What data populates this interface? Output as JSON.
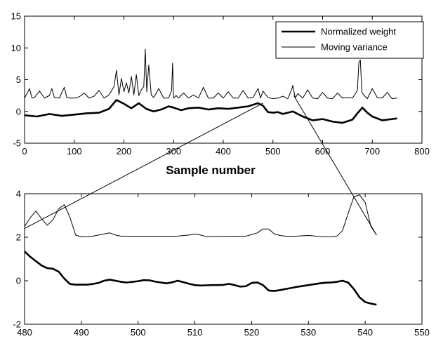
{
  "chart_data": [
    {
      "type": "line",
      "xlabel": "Sample number",
      "ylabel": "",
      "xlim": [
        0,
        800
      ],
      "ylim": [
        -5,
        15
      ],
      "xticks": [
        0,
        100,
        200,
        300,
        400,
        500,
        600,
        700,
        800
      ],
      "yticks": [
        -5,
        0,
        5,
        10,
        15
      ],
      "grid": false,
      "legend_position": "top-right",
      "series": [
        {
          "name": "Normalized weight",
          "line_width": "thick",
          "x": [
            0,
            25,
            50,
            75,
            100,
            125,
            150,
            170,
            185,
            200,
            215,
            230,
            245,
            260,
            275,
            290,
            300,
            315,
            330,
            350,
            370,
            390,
            410,
            430,
            450,
            470,
            480,
            490,
            500,
            510,
            520,
            540,
            560,
            580,
            600,
            620,
            640,
            660,
            670,
            680,
            690,
            700,
            720,
            740,
            750
          ],
          "y": [
            -0.6,
            -0.8,
            -0.4,
            -0.7,
            -0.5,
            -0.3,
            -0.2,
            0.4,
            1.8,
            1.2,
            0.5,
            1.3,
            0.4,
            0.0,
            0.3,
            0.8,
            0.6,
            0.2,
            0.5,
            0.6,
            0.3,
            0.5,
            0.4,
            0.6,
            0.8,
            1.3,
            0.9,
            -0.1,
            -0.2,
            -0.1,
            -0.4,
            0.0,
            -0.8,
            -1.4,
            -1.2,
            -1.6,
            -1.8,
            -1.3,
            -0.3,
            0.6,
            -0.2,
            -0.8,
            -1.4,
            -1.2,
            -1.1
          ]
        },
        {
          "name": "Moving variance",
          "line_width": "thin",
          "x": [
            0,
            10,
            15,
            20,
            30,
            40,
            50,
            55,
            60,
            70,
            80,
            85,
            90,
            100,
            110,
            120,
            130,
            140,
            150,
            160,
            170,
            180,
            185,
            190,
            195,
            200,
            205,
            210,
            215,
            220,
            225,
            230,
            235,
            240,
            243,
            246,
            250,
            255,
            260,
            270,
            280,
            290,
            296,
            298,
            300,
            305,
            310,
            320,
            330,
            340,
            350,
            360,
            370,
            380,
            390,
            400,
            410,
            420,
            430,
            440,
            450,
            460,
            470,
            475,
            480,
            490,
            500,
            510,
            520,
            530,
            538,
            540,
            545,
            550,
            560,
            570,
            580,
            590,
            600,
            610,
            620,
            630,
            640,
            650,
            660,
            670,
            673,
            676,
            679,
            685,
            690,
            700,
            710,
            720,
            730,
            740,
            750
          ],
          "y": [
            2.1,
            3.6,
            2.1,
            2.2,
            3.2,
            2.1,
            2.5,
            3.6,
            2.2,
            2.1,
            3.8,
            2.2,
            2.1,
            2.1,
            2.3,
            2.9,
            2.1,
            2.4,
            3.3,
            2.1,
            2.6,
            3.9,
            6.5,
            2.6,
            5.2,
            3.1,
            4.5,
            2.9,
            5.5,
            2.6,
            5.8,
            2.5,
            3.4,
            3.9,
            9.8,
            3.1,
            7.3,
            2.6,
            2.2,
            3.6,
            2.1,
            2.1,
            3.3,
            7.6,
            2.1,
            2.5,
            2.1,
            2.9,
            2.1,
            2.6,
            2.1,
            3.8,
            2.1,
            2.1,
            2.9,
            2.1,
            3.1,
            2.1,
            2.1,
            3.3,
            2.1,
            2.2,
            3.6,
            2.1,
            3.2,
            2.2,
            2.0,
            2.1,
            2.4,
            2.0,
            3.5,
            4.1,
            2.1,
            2.8,
            2.1,
            3.4,
            2.1,
            2.0,
            3.0,
            2.1,
            2.0,
            2.9,
            2.1,
            2.2,
            2.1,
            3.3,
            7.7,
            8.1,
            3.0,
            2.4,
            2.0,
            3.6,
            2.2,
            2.1,
            3.0,
            2.0,
            2.1
          ]
        }
      ]
    },
    {
      "type": "line",
      "xlabel": "",
      "ylabel": "",
      "xlim": [
        480,
        550
      ],
      "ylim": [
        -2,
        4
      ],
      "xticks": [
        480,
        490,
        500,
        510,
        520,
        530,
        540,
        550
      ],
      "yticks": [
        -2,
        0,
        2,
        4
      ],
      "grid": false,
      "series": [
        {
          "name": "Normalized weight",
          "line_width": "thick",
          "x": [
            480,
            481,
            482,
            483,
            484,
            485,
            486,
            487,
            488,
            489,
            490,
            491,
            492,
            493,
            494,
            495,
            496,
            497,
            498,
            499,
            500,
            501,
            502,
            503,
            504,
            505,
            506,
            507,
            508,
            509,
            510,
            511,
            512,
            513,
            514,
            515,
            516,
            517,
            518,
            519,
            520,
            521,
            522,
            523,
            524,
            525,
            526,
            527,
            528,
            529,
            530,
            531,
            532,
            533,
            534,
            535,
            536,
            537,
            538,
            539,
            540,
            541,
            542
          ],
          "y": [
            1.35,
            1.1,
            0.9,
            0.7,
            0.58,
            0.55,
            0.42,
            0.1,
            -0.15,
            -0.18,
            -0.18,
            -0.18,
            -0.15,
            -0.1,
            0.0,
            0.05,
            0.0,
            -0.05,
            -0.08,
            -0.05,
            -0.02,
            0.03,
            0.02,
            -0.04,
            -0.08,
            -0.12,
            -0.07,
            0.0,
            -0.07,
            -0.14,
            -0.2,
            -0.22,
            -0.21,
            -0.2,
            -0.2,
            -0.19,
            -0.14,
            -0.2,
            -0.27,
            -0.25,
            -0.1,
            -0.08,
            -0.2,
            -0.45,
            -0.47,
            -0.43,
            -0.38,
            -0.33,
            -0.28,
            -0.24,
            -0.2,
            -0.16,
            -0.12,
            -0.09,
            -0.08,
            -0.05,
            0.0,
            -0.08,
            -0.38,
            -0.76,
            -0.98,
            -1.05,
            -1.1
          ]
        },
        {
          "name": "Moving variance",
          "line_width": "thin",
          "x": [
            480,
            481,
            482,
            483,
            484,
            485,
            486,
            487,
            488,
            489,
            490,
            491,
            492,
            493,
            494,
            495,
            496,
            497,
            498,
            499,
            500,
            501,
            502,
            503,
            504,
            505,
            506,
            507,
            508,
            509,
            510,
            511,
            512,
            513,
            514,
            515,
            516,
            517,
            518,
            519,
            520,
            521,
            522,
            523,
            524,
            525,
            526,
            527,
            528,
            529,
            530,
            531,
            532,
            533,
            534,
            535,
            536,
            537,
            538,
            539,
            540,
            541,
            542
          ],
          "y": [
            2.5,
            2.9,
            3.2,
            2.85,
            2.55,
            2.8,
            3.3,
            3.5,
            2.9,
            2.1,
            2.02,
            2.03,
            2.05,
            2.1,
            2.15,
            2.2,
            2.1,
            2.05,
            2.05,
            2.05,
            2.05,
            2.05,
            2.05,
            2.05,
            2.05,
            2.05,
            2.05,
            2.05,
            2.08,
            2.1,
            2.15,
            2.1,
            2.03,
            2.03,
            2.04,
            2.04,
            2.05,
            2.05,
            2.05,
            2.05,
            2.12,
            2.2,
            2.38,
            2.38,
            2.15,
            2.08,
            2.05,
            2.05,
            2.05,
            2.07,
            2.08,
            2.06,
            2.03,
            2.02,
            2.02,
            2.05,
            2.3,
            3.1,
            3.85,
            3.95,
            3.6,
            2.5,
            2.1
          ]
        }
      ]
    }
  ]
}
